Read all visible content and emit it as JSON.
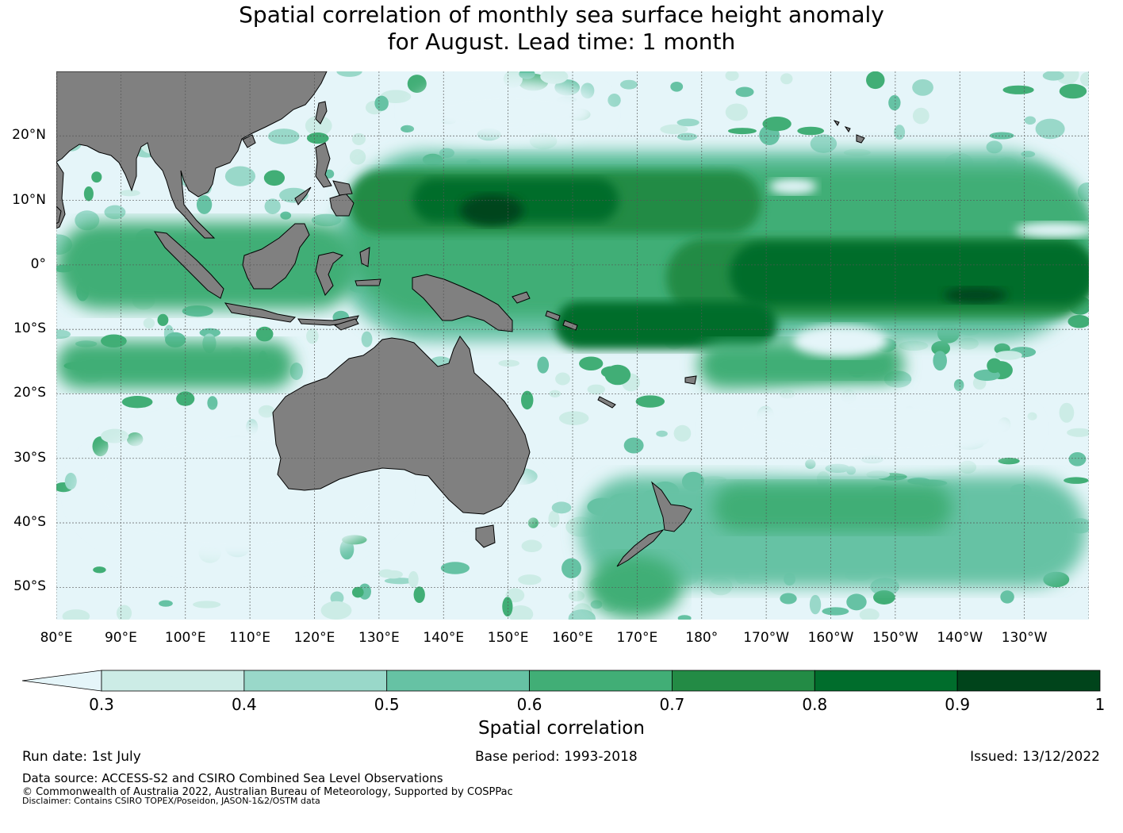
{
  "title_line1": "Spatial correlation of monthly sea surface height anomaly",
  "title_line2": "for August. Lead time: 1 month",
  "map": {
    "lat_labels": [
      "20°N",
      "10°N",
      "0°",
      "10°S",
      "20°S",
      "30°S",
      "40°S",
      "50°S"
    ],
    "lon_labels": [
      "80°E",
      "90°E",
      "100°E",
      "110°E",
      "120°E",
      "130°E",
      "140°E",
      "150°E",
      "160°E",
      "170°E",
      "180°",
      "170°W",
      "160°W",
      "150°W",
      "140°W",
      "130°W"
    ],
    "extent": {
      "lon_min": 80,
      "lon_max": 240,
      "lat_min": -55,
      "lat_max": 30
    },
    "land_color": "#808080",
    "ocean_color": "#e5f5f9"
  },
  "colorbar": {
    "title": "Spatial correlation",
    "ticks": [
      "0.3",
      "0.4",
      "0.5",
      "0.6",
      "0.7",
      "0.8",
      "0.9",
      "1"
    ],
    "colors": [
      "#e5f5f9",
      "#ccece6",
      "#99d8c9",
      "#66c2a4",
      "#41ae76",
      "#238b45",
      "#006d2c",
      "#00441b"
    ]
  },
  "footer": {
    "run_date": "Run date: 1st July",
    "base_period": "Base period: 1993-2018",
    "issued": "Issued: 13/12/2022",
    "data_source": "Data source: ACCESS-S2 and CSIRO Combined Sea Level Observations",
    "copyright": "© Commonwealth of Australia 2022, Australian Bureau of Meteorology, Supported by COSPPac",
    "disclaimer": "Disclaimer: Contains CSIRO TOPEX/Poseidon, JASON-1&2/OSTM data"
  }
}
